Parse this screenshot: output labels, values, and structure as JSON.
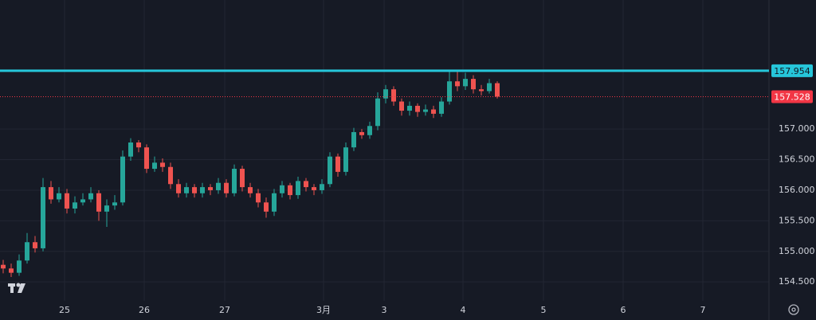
{
  "chart_data": {
    "type": "candlestick",
    "xlim": [
      -0.4,
      96.1
    ],
    "xticks": [
      {
        "value": 7.7,
        "label": "25"
      },
      {
        "value": 17.7,
        "label": "26"
      },
      {
        "value": 27.8,
        "label": "27"
      },
      {
        "value": 40.2,
        "label": "3月"
      },
      {
        "value": 47.8,
        "label": "3"
      },
      {
        "value": 57.7,
        "label": "4"
      },
      {
        "value": 67.8,
        "label": "5"
      },
      {
        "value": 77.8,
        "label": "6"
      },
      {
        "value": 87.8,
        "label": "7"
      }
    ],
    "ylim": [
      154.19,
      159.11
    ],
    "yticks": [
      {
        "value": 154.5,
        "label": "154.500"
      },
      {
        "value": 155,
        "label": "155.000"
      },
      {
        "value": 155.5,
        "label": "155.500"
      },
      {
        "value": 156,
        "label": "156.000"
      },
      {
        "value": 156.5,
        "label": "156.500"
      },
      {
        "value": 157,
        "label": "157.000"
      }
    ],
    "grid": true,
    "up_color": "#26a69a",
    "down_color": "#ef5350",
    "price_lines": [
      {
        "value": 157.954,
        "color": "#26c6da",
        "style": "solid"
      },
      {
        "value": 157.528,
        "color": "#f23645",
        "style": "dotted"
      }
    ],
    "open": [
      154.78,
      154.72,
      154.65,
      154.85,
      155.15,
      155.05,
      156.05,
      155.85,
      155.95,
      155.7,
      155.8,
      155.85,
      155.95,
      155.65,
      155.75,
      155.8,
      156.55,
      156.78,
      156.7,
      156.35,
      156.45,
      156.38,
      156.1,
      155.95,
      156.05,
      155.95,
      156.05,
      156.0,
      156.12,
      155.95,
      156.35,
      156.05,
      155.95,
      155.8,
      155.65,
      155.95,
      156.08,
      155.92,
      156.15,
      156.05,
      156.0,
      156.1,
      156.55,
      156.3,
      156.7,
      156.95,
      156.9,
      157.05,
      157.5,
      157.65,
      157.45,
      157.3,
      157.38,
      157.28,
      157.32,
      157.25,
      157.45,
      157.78,
      157.7,
      157.82,
      157.65,
      157.62,
      157.75
    ],
    "high": [
      154.86,
      154.8,
      154.95,
      155.3,
      155.25,
      156.2,
      156.15,
      156.05,
      156.02,
      155.9,
      155.95,
      156.05,
      156.0,
      155.85,
      155.92,
      156.65,
      156.85,
      156.82,
      156.75,
      156.55,
      156.52,
      156.45,
      156.18,
      156.12,
      156.1,
      156.12,
      156.1,
      156.2,
      156.18,
      156.42,
      156.4,
      156.12,
      156.02,
      155.88,
      156.02,
      156.15,
      156.12,
      156.22,
      156.2,
      156.1,
      156.18,
      156.62,
      156.6,
      156.78,
      157.02,
      157.0,
      157.12,
      157.6,
      157.72,
      157.7,
      157.5,
      157.45,
      157.42,
      157.4,
      157.38,
      157.52,
      157.95,
      157.94,
      157.92,
      157.88,
      157.72,
      157.82,
      157.78
    ],
    "low": [
      154.64,
      154.58,
      154.6,
      154.8,
      154.98,
      155.0,
      155.78,
      155.8,
      155.62,
      155.62,
      155.75,
      155.8,
      155.5,
      155.4,
      155.68,
      155.75,
      156.48,
      156.62,
      156.28,
      156.3,
      156.3,
      156.02,
      155.88,
      155.88,
      155.88,
      155.88,
      155.92,
      155.94,
      155.88,
      155.9,
      155.98,
      155.88,
      155.72,
      155.55,
      155.58,
      155.88,
      155.85,
      155.86,
      155.98,
      155.92,
      155.94,
      156.05,
      156.22,
      156.24,
      156.64,
      156.84,
      156.84,
      156.98,
      157.42,
      157.38,
      157.22,
      157.22,
      157.2,
      157.22,
      157.18,
      157.2,
      157.4,
      157.62,
      157.64,
      157.58,
      157.55,
      157.58,
      157.5
    ],
    "close": [
      154.72,
      154.65,
      154.85,
      155.15,
      155.05,
      156.05,
      155.85,
      155.95,
      155.7,
      155.8,
      155.85,
      155.95,
      155.65,
      155.75,
      155.8,
      156.55,
      156.78,
      156.7,
      156.35,
      156.45,
      156.38,
      156.1,
      155.95,
      156.05,
      155.95,
      156.05,
      156.0,
      156.12,
      155.95,
      156.35,
      156.05,
      155.95,
      155.8,
      155.65,
      155.95,
      156.08,
      155.92,
      156.15,
      156.05,
      156.0,
      156.1,
      156.55,
      156.3,
      156.7,
      156.95,
      156.9,
      157.05,
      157.5,
      157.65,
      157.45,
      157.3,
      157.38,
      157.28,
      157.32,
      157.25,
      157.45,
      157.78,
      157.7,
      157.82,
      157.65,
      157.62,
      157.75,
      157.53
    ]
  }
}
